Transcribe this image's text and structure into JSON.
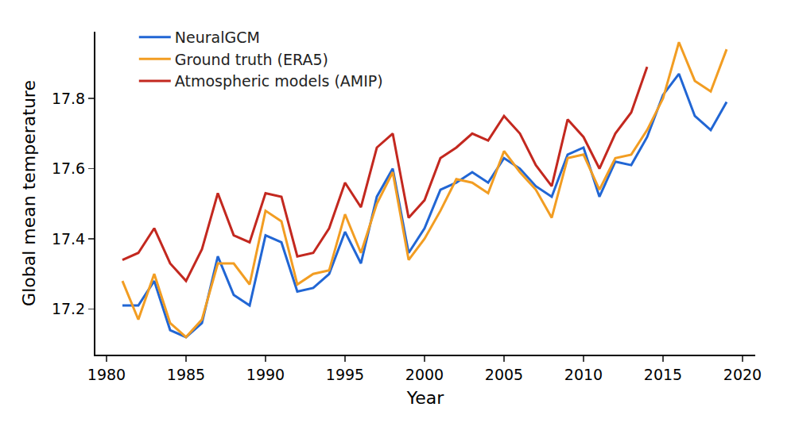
{
  "chart_data": {
    "type": "line",
    "xlabel": "Year",
    "ylabel": "Global mean temperature",
    "x": [
      1981,
      1982,
      1983,
      1984,
      1985,
      1986,
      1987,
      1988,
      1989,
      1990,
      1991,
      1992,
      1993,
      1994,
      1995,
      1996,
      1997,
      1998,
      1999,
      2000,
      2001,
      2002,
      2003,
      2004,
      2005,
      2006,
      2007,
      2008,
      2009,
      2010,
      2011,
      2012,
      2013,
      2014,
      2015,
      2016,
      2017,
      2018,
      2019
    ],
    "series": [
      {
        "name": "NeuralGCM",
        "color": "#2166d4",
        "values": [
          17.21,
          17.21,
          17.28,
          17.14,
          17.12,
          17.16,
          17.35,
          17.24,
          17.21,
          17.41,
          17.39,
          17.25,
          17.26,
          17.3,
          17.42,
          17.33,
          17.52,
          17.6,
          17.36,
          17.43,
          17.54,
          17.56,
          17.59,
          17.56,
          17.63,
          17.6,
          17.55,
          17.52,
          17.64,
          17.66,
          17.52,
          17.62,
          17.61,
          17.69,
          17.81,
          17.87,
          17.75,
          17.71,
          17.79
        ]
      },
      {
        "name": "Ground truth (ERA5)",
        "color": "#f29d22",
        "values": [
          17.28,
          17.17,
          17.3,
          17.16,
          17.12,
          17.17,
          17.33,
          17.33,
          17.27,
          17.48,
          17.45,
          17.27,
          17.3,
          17.31,
          17.47,
          17.36,
          17.5,
          17.59,
          17.34,
          17.4,
          17.48,
          17.57,
          17.56,
          17.53,
          17.65,
          17.59,
          17.54,
          17.46,
          17.63,
          17.64,
          17.54,
          17.63,
          17.64,
          17.71,
          17.8,
          17.96,
          17.85,
          17.82,
          17.94
        ]
      },
      {
        "name": "Atmospheric models (AMIP)",
        "color": "#c3281f",
        "values": [
          17.34,
          17.36,
          17.43,
          17.33,
          17.28,
          17.37,
          17.53,
          17.41,
          17.39,
          17.53,
          17.52,
          17.35,
          17.36,
          17.43,
          17.56,
          17.49,
          17.66,
          17.7,
          17.46,
          17.51,
          17.63,
          17.66,
          17.7,
          17.68,
          17.75,
          17.7,
          17.61,
          17.55,
          17.74,
          17.69,
          17.6,
          17.7,
          17.76,
          17.89,
          null,
          null,
          null,
          null,
          null
        ]
      }
    ],
    "xlim": [
      1979.3,
      2020.8
    ],
    "ylim": [
      17.07,
      17.99
    ],
    "xticks": [
      1980,
      1985,
      1990,
      1995,
      2000,
      2005,
      2010,
      2015,
      2020
    ],
    "yticks": [
      17.2,
      17.4,
      17.6,
      17.8
    ],
    "grid": false,
    "legend": "upper left"
  }
}
